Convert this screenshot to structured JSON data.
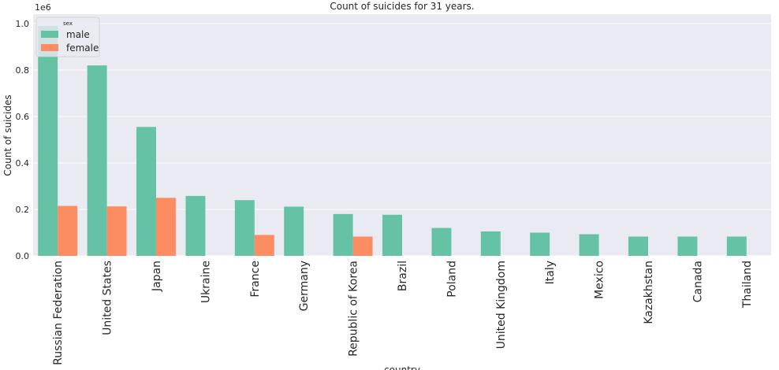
{
  "chart_data": {
    "type": "bar",
    "title": "Count of suicides for 31 years.",
    "xlabel": "country",
    "ylabel": "Count of suicides",
    "y_offset_label": "1e6",
    "ylim": [
      0,
      1.0
    ],
    "yticks": [
      "0.0",
      "0.2",
      "0.4",
      "0.6",
      "0.8",
      "1.0"
    ],
    "grid": true,
    "legend": {
      "title": "sex",
      "position": "top-left"
    },
    "categories": [
      "Russian Federation",
      "United States",
      "Japan",
      "Ukraine",
      "France",
      "Germany",
      "Republic of Korea",
      "Brazil",
      "Poland",
      "United Kingdom",
      "Italy",
      "Mexico",
      "Kazakhstan",
      "Canada",
      "Thailand"
    ],
    "series": [
      {
        "name": "male",
        "color": "#66c2a5",
        "values": [
          0.99,
          0.82,
          0.555,
          0.258,
          0.24,
          0.212,
          0.18,
          0.177,
          0.12,
          0.105,
          0.1,
          0.093,
          0.083,
          0.083,
          0.083
        ]
      },
      {
        "name": "female",
        "color": "#fc8d62",
        "values": [
          0.215,
          0.213,
          0.25,
          0,
          0.09,
          0,
          0.083,
          0,
          0,
          0,
          0,
          0,
          0,
          0,
          0
        ]
      }
    ]
  }
}
